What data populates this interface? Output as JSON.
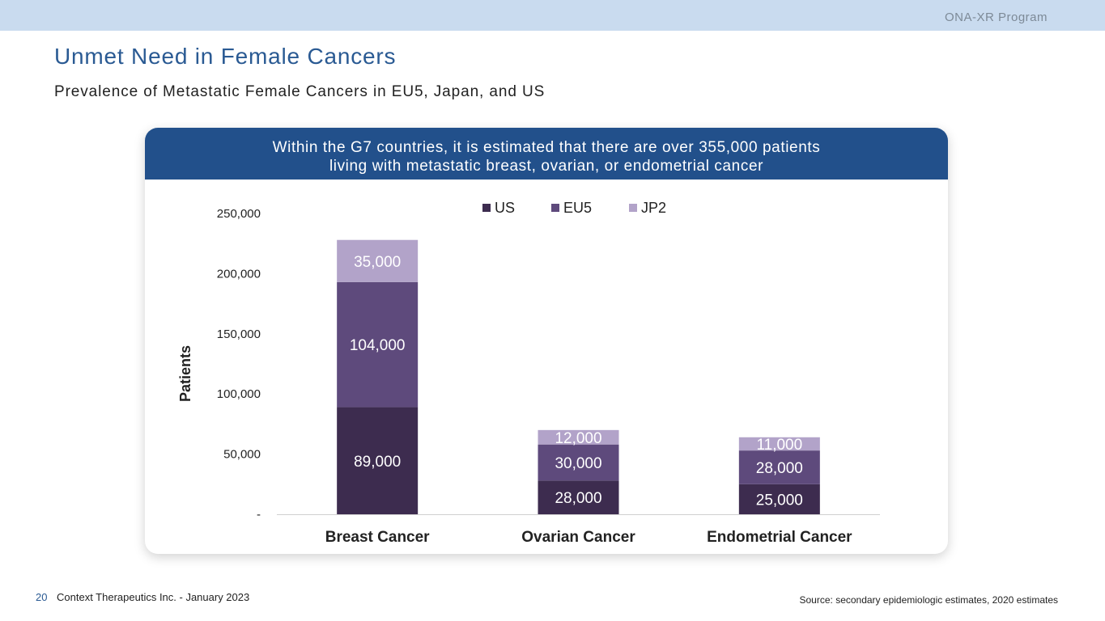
{
  "header": {
    "program": "ONA-XR Program"
  },
  "page": {
    "title": "Unmet Need in Female Cancers",
    "subtitle": "Prevalence of Metastatic Female Cancers in EU5, Japan, and US"
  },
  "callout": {
    "line1": "Within the G7 countries, it is estimated that there are over 355,000 patients",
    "line2": "living with metastatic breast, ovarian, or endometrial cancer"
  },
  "colors": {
    "US": "#3d2c4f",
    "EU5": "#5e4a7c",
    "JP2": "#b2a3c9",
    "header": "#22508b"
  },
  "chart_data": {
    "type": "bar",
    "stacked": true,
    "categories": [
      "Breast Cancer",
      "Ovarian Cancer",
      "Endometrial Cancer"
    ],
    "series": [
      {
        "name": "US",
        "values": [
          89000,
          28000,
          25000
        ],
        "labels": [
          "89,000",
          "28,000",
          "25,000"
        ]
      },
      {
        "name": "EU5",
        "values": [
          104000,
          30000,
          28000
        ],
        "labels": [
          "104,000",
          "30,000",
          "28,000"
        ]
      },
      {
        "name": "JP2",
        "values": [
          35000,
          12000,
          11000
        ],
        "labels": [
          "35,000",
          "12,000",
          "11,000"
        ]
      }
    ],
    "ylabel": "Patients",
    "xlabel": "",
    "ylim": [
      0,
      250000
    ],
    "yticks": [
      0,
      50000,
      100000,
      150000,
      200000,
      250000
    ],
    "ytick_labels": [
      "-",
      "50,000",
      "100,000",
      "150,000",
      "200,000",
      "250,000"
    ],
    "legend_position": "top-center",
    "grid": false
  },
  "footer": {
    "page_number": "20",
    "company": "Context Therapeutics Inc. - January 2023",
    "source": "Source: secondary epidemiologic estimates, 2020 estimates"
  }
}
